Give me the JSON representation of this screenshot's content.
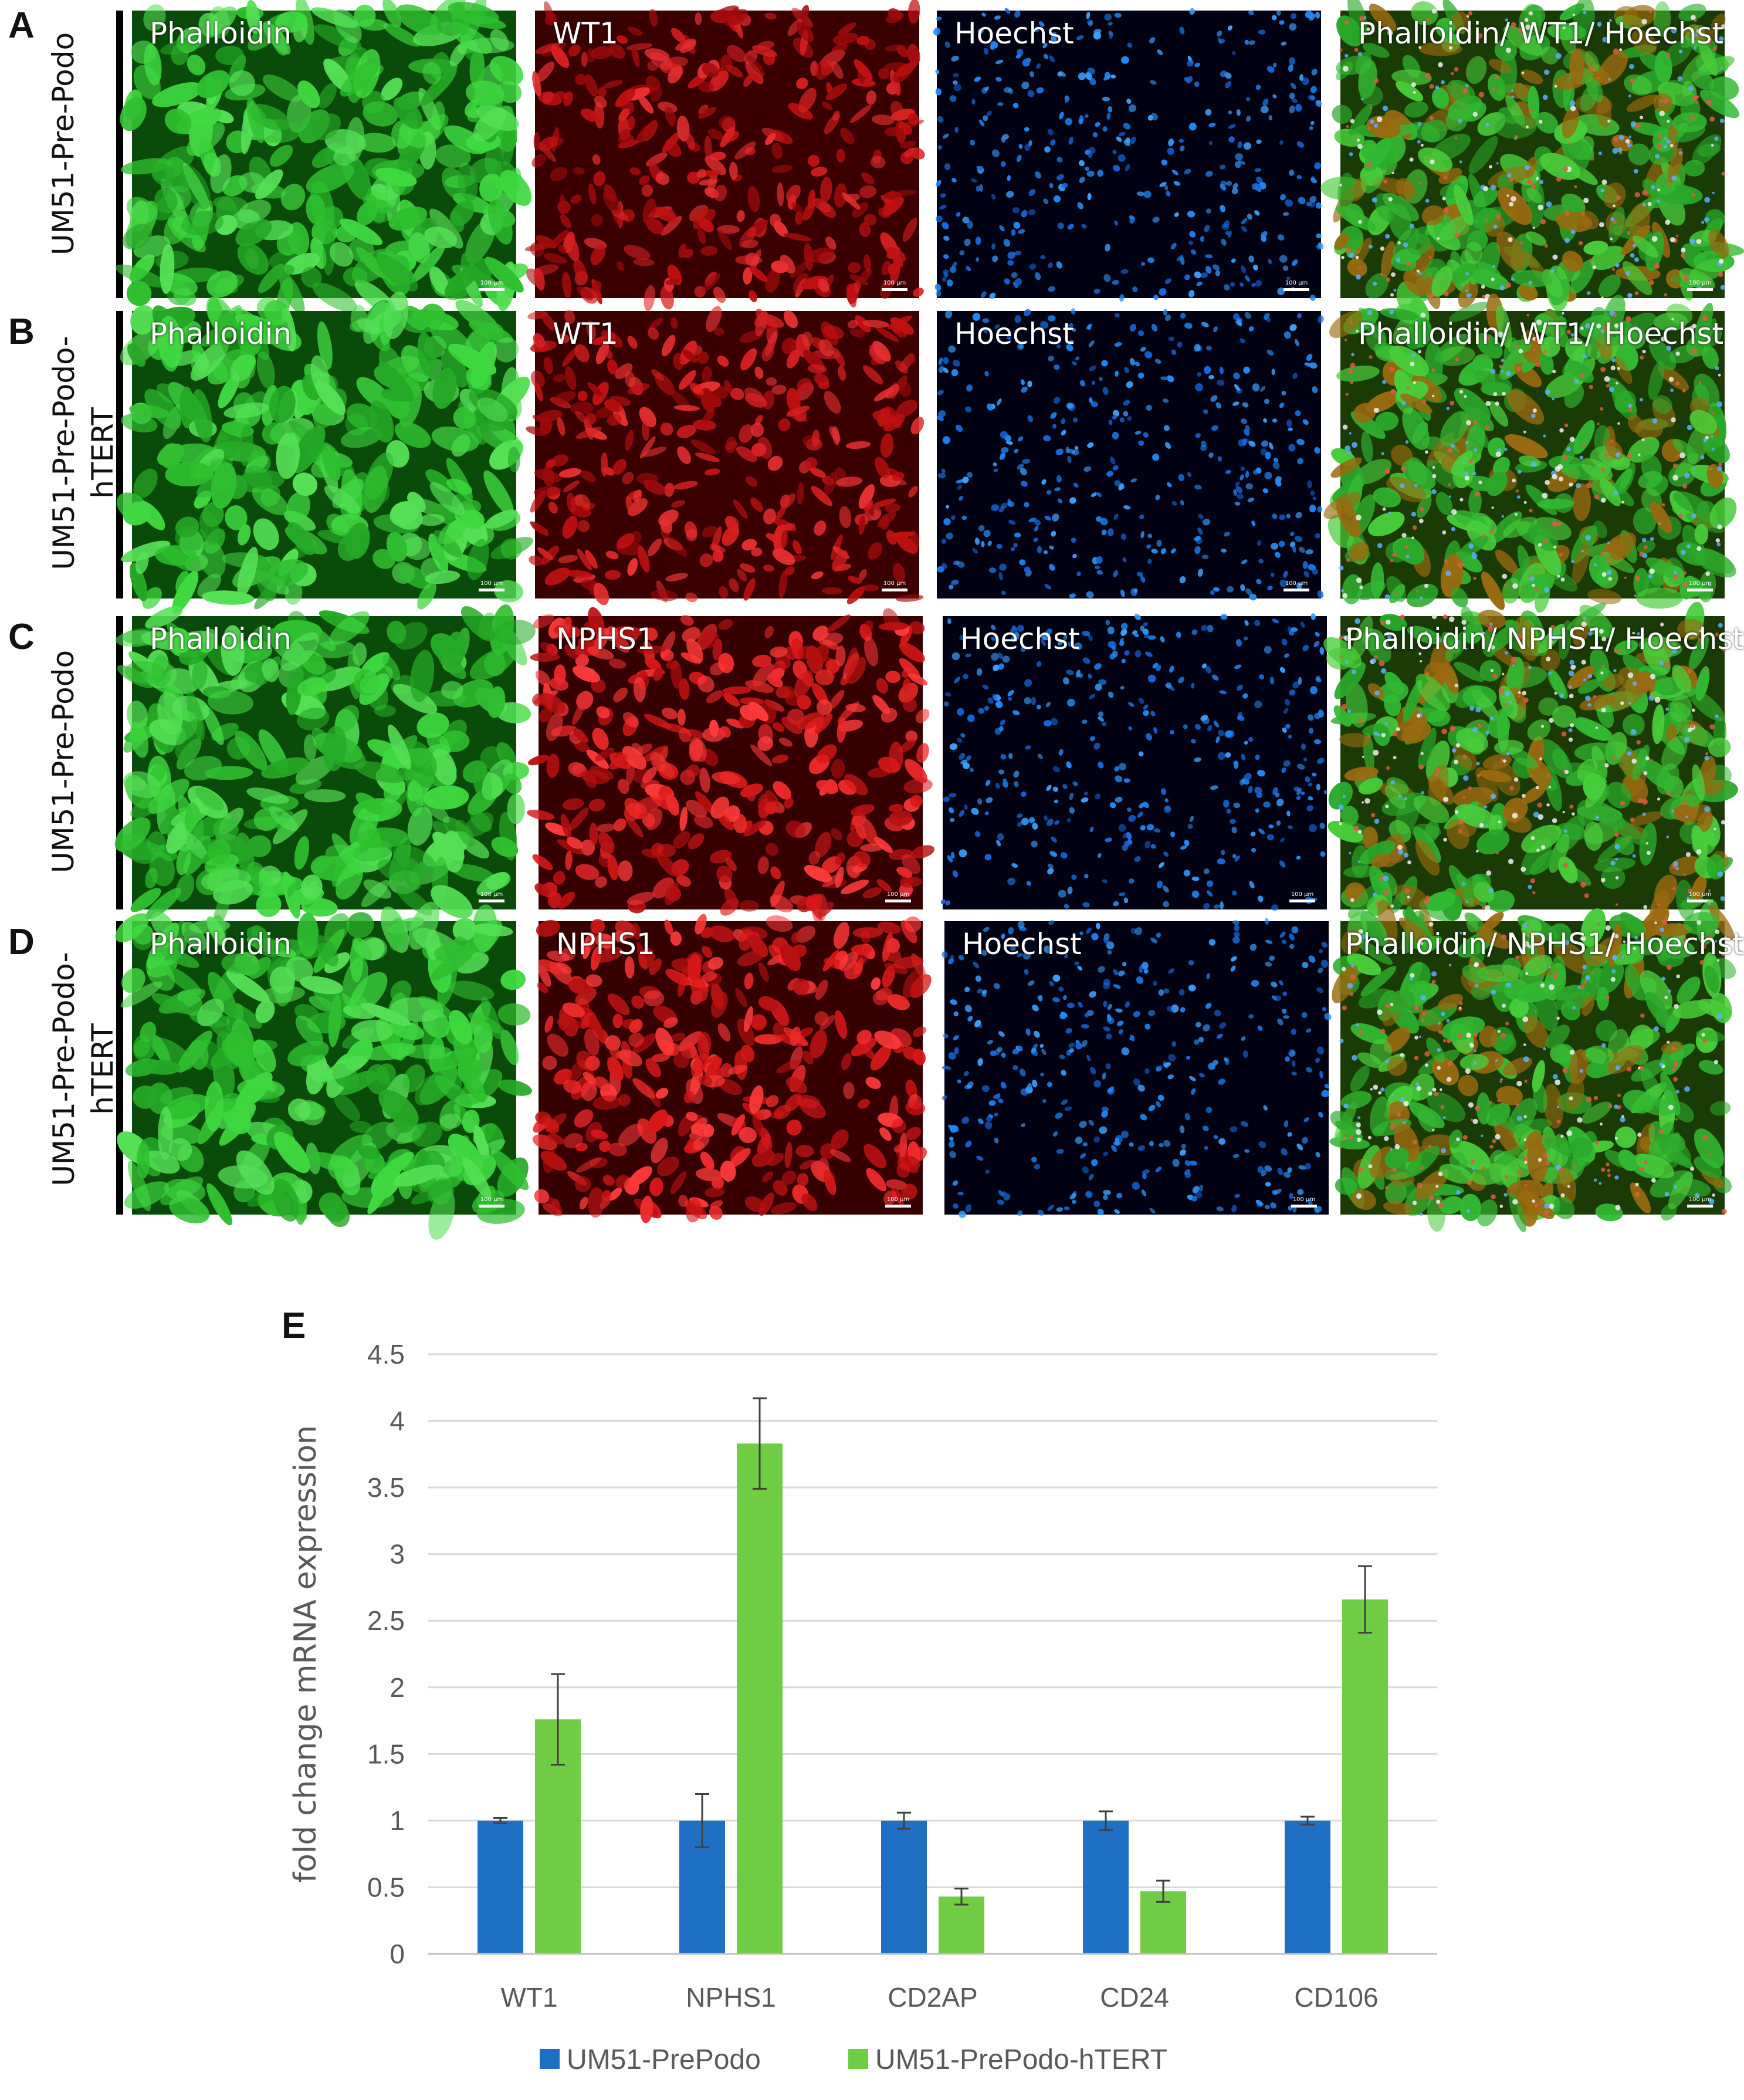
{
  "panels": [
    {
      "letter": "A",
      "row_label": [
        "UM51-Pre-Podo"
      ],
      "images": [
        {
          "label": "Phalloidin",
          "stain": "phalloidin-green"
        },
        {
          "label": "WT1",
          "stain": "wt1-red"
        },
        {
          "label": "Hoechst",
          "stain": "hoechst-blue"
        },
        {
          "label": "Phalloidin/ WT1/ Hoechst",
          "stain": "merged"
        }
      ]
    },
    {
      "letter": "B",
      "row_label": [
        "UM51-Pre-Podo-",
        "hTERT"
      ],
      "images": [
        {
          "label": "Phalloidin",
          "stain": "phalloidin-green"
        },
        {
          "label": "WT1",
          "stain": "wt1-red"
        },
        {
          "label": "Hoechst",
          "stain": "hoechst-blue"
        },
        {
          "label": "Phalloidin/ WT1/ Hoechst",
          "stain": "merged"
        }
      ]
    },
    {
      "letter": "C",
      "row_label": [
        "UM51-Pre-Podo"
      ],
      "images": [
        {
          "label": "Phalloidin",
          "stain": "phalloidin-green"
        },
        {
          "label": "NPHS1",
          "stain": "nphs1-red"
        },
        {
          "label": "Hoechst",
          "stain": "hoechst-blue"
        },
        {
          "label": "Phalloidin/ NPHS1/ Hoechst",
          "stain": "merged"
        }
      ]
    },
    {
      "letter": "D",
      "row_label": [
        "UM51-Pre-Podo-",
        "hTERT"
      ],
      "images": [
        {
          "label": "Phalloidin",
          "stain": "phalloidin-green"
        },
        {
          "label": "NPHS1",
          "stain": "nphs1-red"
        },
        {
          "label": "Hoechst",
          "stain": "hoechst-blue"
        },
        {
          "label": "Phalloidin/ NPHS1/ Hoechst",
          "stain": "merged"
        }
      ]
    }
  ],
  "scale_bar_text": "100 µm",
  "chart_data": {
    "type": "bar",
    "panel_letter": "E",
    "title": "",
    "xlabel": "",
    "ylabel": "fold change mRNA expression",
    "categories": [
      "WT1",
      "NPHS1",
      "CD2AP",
      "CD24",
      "CD106"
    ],
    "series": [
      {
        "name": "UM51-PrePodo",
        "color": "#1f6fc5",
        "values": [
          1.0,
          1.0,
          1.0,
          1.0,
          1.0
        ],
        "errors": [
          0.02,
          0.2,
          0.06,
          0.07,
          0.03
        ]
      },
      {
        "name": "UM51-PrePodo-hTERT",
        "color": "#70cc44",
        "values": [
          1.76,
          3.83,
          0.43,
          0.47,
          2.66
        ],
        "errors": [
          0.34,
          0.34,
          0.06,
          0.08,
          0.25
        ]
      }
    ],
    "yticks": [
      "0",
      "0.5",
      "1",
      "1.5",
      "2",
      "2.5",
      "3",
      "3.5",
      "4",
      "4.5"
    ],
    "ylim": [
      0,
      4.5
    ],
    "grid": true,
    "legend_position": "bottom"
  }
}
